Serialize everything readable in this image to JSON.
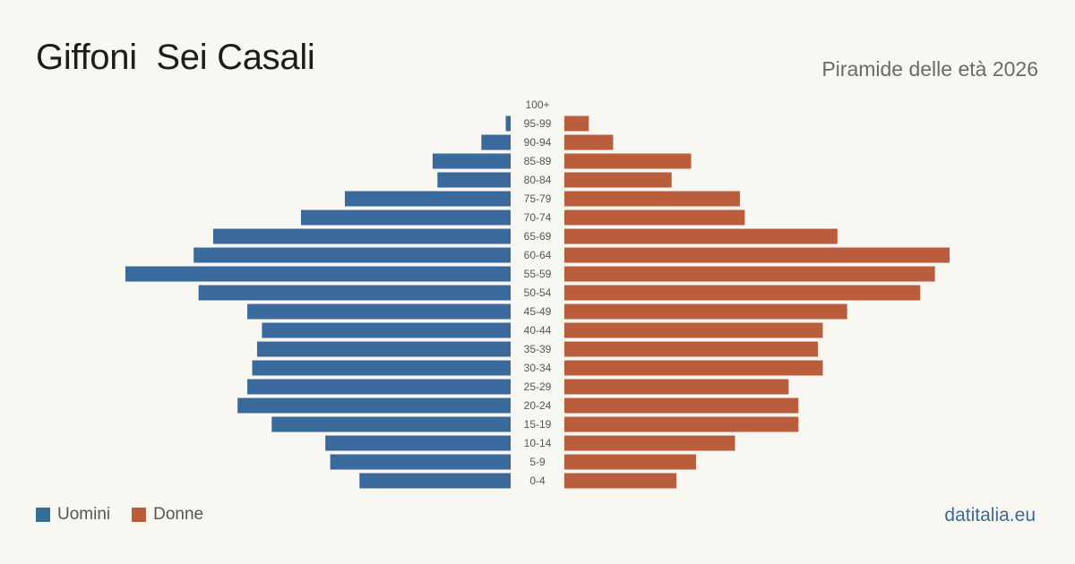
{
  "title": "Giffoni  Sei Casali",
  "subtitle": "Piramide delle età 2026",
  "brand": "datitalia.eu",
  "legend": {
    "men": "Uomini",
    "women": "Donne"
  },
  "colors": {
    "men": "#3a6a9b",
    "women": "#b95d3d",
    "background": "#f9f7f2"
  },
  "chart_data": {
    "type": "bar",
    "orientation": "horizontal-population-pyramid",
    "categories": [
      "100+",
      "95-99",
      "90-94",
      "85-89",
      "80-84",
      "75-79",
      "70-74",
      "65-69",
      "60-64",
      "55-59",
      "50-54",
      "45-49",
      "40-44",
      "35-39",
      "30-34",
      "25-29",
      "20-24",
      "15-19",
      "10-14",
      "5-9",
      "0-4"
    ],
    "series": [
      {
        "name": "Uomini",
        "values": [
          0,
          1,
          6,
          16,
          15,
          34,
          43,
          61,
          65,
          79,
          64,
          54,
          51,
          52,
          53,
          54,
          56,
          49,
          38,
          37,
          31
        ]
      },
      {
        "name": "Donne",
        "values": [
          0,
          5,
          10,
          26,
          22,
          36,
          37,
          56,
          79,
          76,
          73,
          58,
          53,
          52,
          53,
          46,
          48,
          48,
          35,
          27,
          23
        ]
      }
    ],
    "legend_position": "bottom-left",
    "grid": false,
    "xlim": [
      0,
      80
    ]
  }
}
